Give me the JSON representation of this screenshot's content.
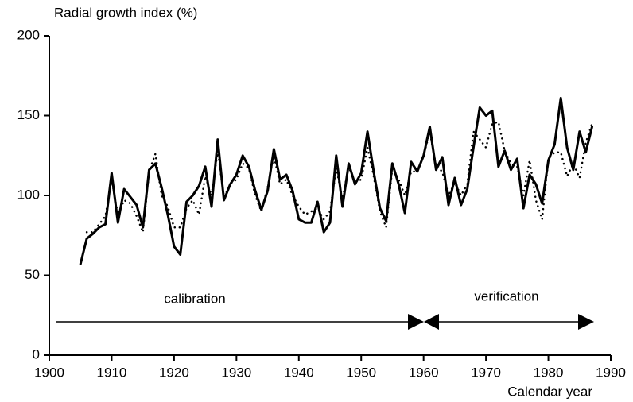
{
  "chart_data": {
    "type": "line",
    "y_label": "Radial growth index (%)",
    "x_label": "Calendar year",
    "annotations": [
      "calibration",
      "verification"
    ],
    "x": [
      1905,
      1906,
      1907,
      1908,
      1909,
      1910,
      1911,
      1912,
      1913,
      1914,
      1915,
      1916,
      1917,
      1918,
      1919,
      1920,
      1921,
      1922,
      1923,
      1924,
      1925,
      1926,
      1927,
      1928,
      1929,
      1930,
      1931,
      1932,
      1933,
      1934,
      1935,
      1936,
      1937,
      1938,
      1939,
      1940,
      1941,
      1942,
      1943,
      1944,
      1945,
      1946,
      1947,
      1948,
      1949,
      1950,
      1951,
      1952,
      1953,
      1954,
      1955,
      1956,
      1957,
      1958,
      1959,
      1960,
      1961,
      1962,
      1963,
      1964,
      1965,
      1966,
      1967,
      1968,
      1969,
      1970,
      1971,
      1972,
      1973,
      1974,
      1975,
      1976,
      1977,
      1978,
      1979,
      1980,
      1981,
      1982,
      1983,
      1984,
      1985,
      1986,
      1987
    ],
    "series": [
      {
        "color": "#000000",
        "line_style": "solid",
        "values": [
          57,
          73,
          76,
          80,
          82,
          114,
          83,
          104,
          99,
          94,
          80,
          116,
          120,
          105,
          88,
          68,
          63,
          96,
          100,
          106,
          118,
          93,
          135,
          97,
          107,
          113,
          125,
          118,
          103,
          91,
          103,
          129,
          110,
          113,
          103,
          85,
          83,
          83,
          96,
          77,
          83,
          125,
          93,
          120,
          107,
          114,
          140,
          115,
          92,
          84,
          120,
          107,
          89,
          121,
          115,
          125,
          143,
          116,
          124,
          94,
          111,
          94,
          104,
          130,
          155,
          150,
          153,
          118,
          128,
          116,
          123,
          92,
          113,
          107,
          95,
          122,
          132,
          161,
          130,
          116,
          140,
          127,
          143
        ]
      },
      {
        "color": "#000000",
        "line_style": "dotted",
        "values": [
          null,
          77,
          77,
          82,
          87,
          110,
          88,
          97,
          95,
          87,
          77,
          115,
          126,
          100,
          93,
          80,
          80,
          92,
          97,
          88,
          112,
          100,
          128,
          99,
          107,
          110,
          120,
          117,
          100,
          90,
          105,
          125,
          107,
          110,
          100,
          93,
          88,
          90,
          92,
          85,
          90,
          117,
          98,
          118,
          108,
          110,
          130,
          112,
          90,
          80,
          117,
          110,
          100,
          115,
          115,
          125,
          140,
          118,
          115,
          100,
          108,
          100,
          107,
          140,
          135,
          130,
          145,
          146,
          128,
          120,
          118,
          100,
          122,
          97,
          85,
          123,
          127,
          127,
          112,
          120,
          111,
          133,
          145
        ]
      }
    ],
    "xlim": [
      1900,
      1990
    ],
    "xticks": [
      1900,
      1910,
      1920,
      1930,
      1940,
      1950,
      1960,
      1970,
      1980,
      1990
    ],
    "ylim": [
      0,
      200
    ],
    "yticks": [
      0,
      50,
      100,
      150,
      200
    ]
  }
}
